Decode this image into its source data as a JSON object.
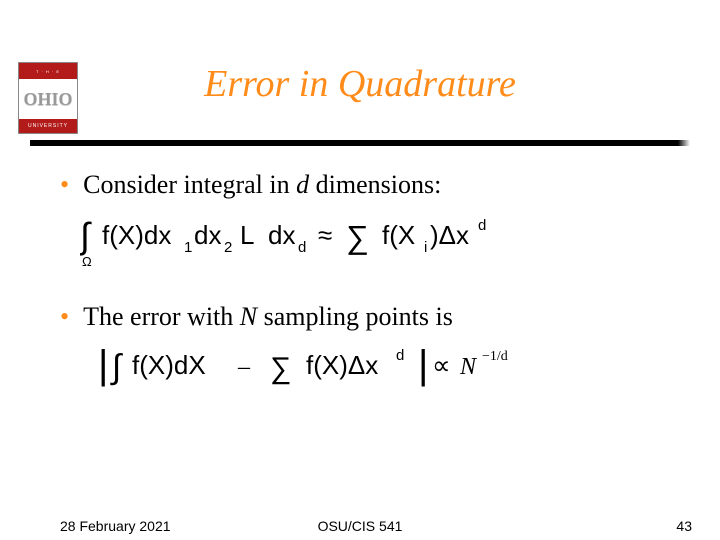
{
  "logo": {
    "top_text": "T · H · E",
    "mid_text": "OHIO",
    "bot_text": "UNIVERSITY",
    "red": "#b31b1b",
    "gray": "#999999"
  },
  "title": {
    "text": "Error in Quadrature",
    "color": "#ff8c1a",
    "fontsize": 38,
    "italic": true
  },
  "rule": {
    "color": "#000000",
    "thickness": 6
  },
  "bullets": [
    {
      "lead": "Consider integral in ",
      "ital": "d",
      "tail": " dimensions:"
    },
    {
      "lead": "The error with ",
      "ital": "N",
      "tail": "  sampling points is"
    }
  ],
  "equations": {
    "eq1": {
      "type": "math",
      "tex": "\\int_{\\Omega} f(X)\\,dx_1 dx_2 \\,\\mathsf{L}\\, dx_d \\approx \\sum f(X_i)\\,\\Delta x^d",
      "font_family": "sans-serif",
      "color": "#000000"
    },
    "eq2": {
      "type": "math",
      "tex": "\\left| \\int f(X)\\,dX \\; - \\; \\sum f(X)\\,\\Delta x^d \\right| \\propto N^{-1/d}",
      "font_family": "sans-serif",
      "color": "#000000"
    }
  },
  "footer": {
    "date": "28 February 2021",
    "center": "OSU/CIS 541",
    "page": "43",
    "fontsize": 14
  },
  "colors": {
    "accent": "#ff8c1a",
    "text": "#000000",
    "background": "#ffffff"
  }
}
